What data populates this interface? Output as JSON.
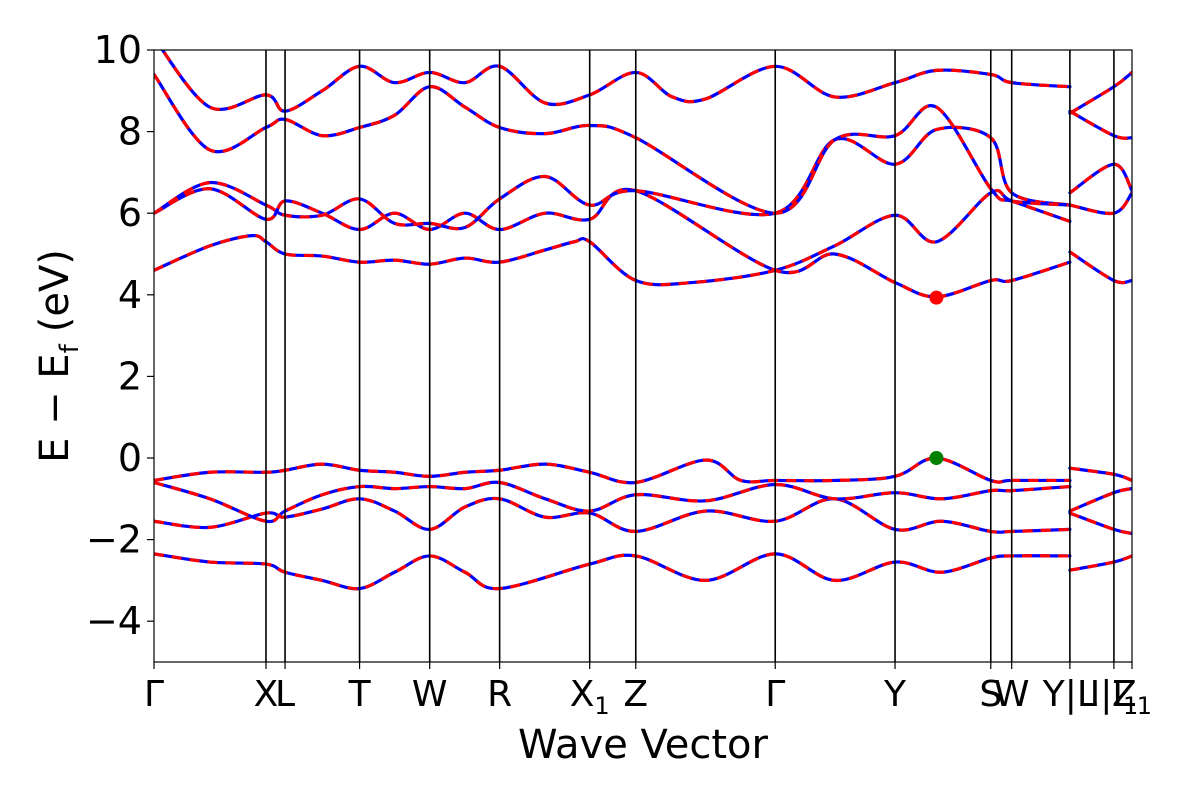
{
  "chart_data": {
    "type": "line",
    "title": "",
    "xlabel": "Wave Vector",
    "ylabel": "E − E",
    "ylabel_sub": "f",
    "ylabel_unit": "(eV)",
    "ylim": [
      -5,
      10
    ],
    "xlim": [
      0,
      1
    ],
    "grid": false,
    "yticks": [
      -4,
      -2,
      0,
      2,
      4,
      6,
      8,
      10
    ],
    "ytick_labels": [
      "−4",
      "−2",
      "0",
      "2",
      "4",
      "6",
      "8",
      "10"
    ],
    "kpoints": [
      {
        "x": 0.0,
        "main": "Γ",
        "sub": ""
      },
      {
        "x": 0.1145,
        "main": "X",
        "sub": ""
      },
      {
        "x": 0.134,
        "main": "L",
        "sub": ""
      },
      {
        "x": 0.2102,
        "main": "T",
        "sub": ""
      },
      {
        "x": 0.2819,
        "main": "W",
        "sub": ""
      },
      {
        "x": 0.3534,
        "main": "R",
        "sub": ""
      },
      {
        "x": 0.4455,
        "main": "X",
        "sub": "1"
      },
      {
        "x": 0.4926,
        "main": "Z",
        "sub": ""
      },
      {
        "x": 0.6352,
        "main": "Γ",
        "sub": ""
      },
      {
        "x": 0.7577,
        "main": "Y",
        "sub": ""
      },
      {
        "x": 0.8556,
        "main": "S",
        "sub": ""
      },
      {
        "x": 0.877,
        "main": "W",
        "sub": ""
      },
      {
        "x": 0.9365,
        "main": "Y|L",
        "sub": ""
      },
      {
        "x": 0.9815,
        "main": "I|I",
        "sub": "1"
      },
      {
        "x": 1.0,
        "main": "Z",
        "sub": "1"
      }
    ],
    "series_styles": {
      "reference": {
        "color": "#0000ff",
        "width": 3.2
      },
      "overlay": {
        "color": "#ff0000",
        "width": 3.2,
        "dash": "10 8"
      }
    },
    "bands": [
      {
        "x": [
          0.0,
          0.057,
          0.1145,
          0.134,
          0.172,
          0.2102,
          0.246,
          0.2819,
          0.318,
          0.3534,
          0.4455,
          0.4926,
          0.564,
          0.6352,
          0.696,
          0.7577,
          0.805,
          0.8556,
          0.877,
          0.9365
        ],
        "y": [
          -2.35,
          -2.55,
          -2.6,
          -2.8,
          -3.0,
          -3.2,
          -2.8,
          -2.4,
          -2.8,
          -3.2,
          -2.6,
          -2.4,
          -3.0,
          -2.35,
          -3.0,
          -2.55,
          -2.8,
          -2.45,
          -2.4,
          -2.4
        ]
      },
      {
        "x": [
          0.0,
          0.057,
          0.1145,
          0.134,
          0.172,
          0.2102,
          0.246,
          0.2819,
          0.318,
          0.3534,
          0.4,
          0.4455,
          0.4926,
          0.564,
          0.6352,
          0.696,
          0.7577,
          0.805,
          0.8556,
          0.877,
          0.9365
        ],
        "y": [
          -1.55,
          -1.7,
          -1.35,
          -1.45,
          -1.25,
          -1.0,
          -1.3,
          -1.75,
          -1.2,
          -1.0,
          -1.45,
          -1.35,
          -1.8,
          -1.3,
          -1.55,
          -1.0,
          -1.75,
          -1.55,
          -1.8,
          -1.8,
          -1.75
        ]
      },
      {
        "x": [
          0.0,
          0.057,
          0.1145,
          0.134,
          0.172,
          0.2102,
          0.246,
          0.2819,
          0.318,
          0.3534,
          0.4,
          0.4455,
          0.4926,
          0.564,
          0.6352,
          0.696,
          0.7577,
          0.805,
          0.8556,
          0.877,
          0.9365
        ],
        "y": [
          -0.6,
          -1.0,
          -1.55,
          -1.3,
          -0.9,
          -0.7,
          -0.75,
          -0.7,
          -0.75,
          -0.6,
          -1.0,
          -1.3,
          -0.9,
          -1.05,
          -0.65,
          -1.0,
          -0.85,
          -1.0,
          -0.8,
          -0.8,
          -0.7
        ]
      },
      {
        "x": [
          0.0,
          0.057,
          0.1145,
          0.134,
          0.172,
          0.2102,
          0.246,
          0.2819,
          0.318,
          0.3534,
          0.4,
          0.4455,
          0.4926,
          0.564,
          0.6,
          0.6352,
          0.696,
          0.7577,
          0.8,
          0.8556,
          0.877,
          0.9365
        ],
        "y": [
          -0.55,
          -0.35,
          -0.35,
          -0.3,
          -0.15,
          -0.3,
          -0.35,
          -0.45,
          -0.35,
          -0.3,
          -0.15,
          -0.35,
          -0.6,
          -0.05,
          -0.55,
          -0.55,
          -0.55,
          -0.45,
          0.0,
          -0.55,
          -0.55,
          -0.55
        ]
      },
      {
        "x": [
          0.0,
          0.057,
          0.1,
          0.1145,
          0.134,
          0.172,
          0.2102,
          0.246,
          0.2819,
          0.318,
          0.3534,
          0.4,
          0.43,
          0.4455,
          0.4926,
          0.55,
          0.6352,
          0.696,
          0.7577,
          0.8,
          0.8556,
          0.877,
          0.9365
        ],
        "y": [
          4.6,
          5.2,
          5.45,
          5.3,
          5.0,
          4.95,
          4.8,
          4.85,
          4.75,
          4.9,
          4.8,
          5.1,
          5.3,
          5.3,
          4.35,
          4.3,
          4.6,
          5.2,
          5.95,
          5.3,
          6.5,
          6.3,
          5.8
        ]
      },
      {
        "x": [
          0.0,
          0.057,
          0.1145,
          0.134,
          0.172,
          0.2102,
          0.246,
          0.2819,
          0.318,
          0.3534,
          0.4,
          0.4455,
          0.4926,
          0.6352,
          0.696,
          0.7577,
          0.8,
          0.8556,
          0.877,
          0.9365
        ],
        "y": [
          6.0,
          6.6,
          5.85,
          6.3,
          6.0,
          5.6,
          6.0,
          5.6,
          6.0,
          5.6,
          6.0,
          5.85,
          6.55,
          4.6,
          5.0,
          4.3,
          3.95,
          4.35,
          4.35,
          4.8
        ]
      },
      {
        "x": [
          0.0,
          0.057,
          0.1145,
          0.134,
          0.172,
          0.2102,
          0.246,
          0.2819,
          0.318,
          0.3534,
          0.4,
          0.4455,
          0.4926,
          0.6352,
          0.696,
          0.7577,
          0.8,
          0.8556,
          0.877,
          0.9365
        ],
        "y": [
          6.0,
          6.75,
          6.2,
          5.95,
          5.95,
          6.35,
          5.75,
          5.75,
          5.65,
          6.35,
          6.9,
          6.2,
          6.55,
          6.0,
          7.8,
          7.2,
          8.05,
          7.85,
          6.5,
          6.2
        ]
      },
      {
        "x": [
          0.0,
          0.057,
          0.1145,
          0.134,
          0.172,
          0.2102,
          0.246,
          0.2819,
          0.318,
          0.3534,
          0.4,
          0.4455,
          0.4926,
          0.6352,
          0.696,
          0.7577,
          0.8,
          0.8556,
          0.877,
          0.9365
        ],
        "y": [
          9.4,
          7.55,
          8.1,
          8.3,
          7.9,
          8.1,
          8.4,
          9.1,
          8.6,
          8.1,
          7.95,
          8.15,
          7.85,
          6.0,
          7.8,
          7.9,
          8.6,
          6.6,
          6.3,
          6.2
        ]
      },
      {
        "x": [
          0.0,
          0.057,
          0.1145,
          0.134,
          0.172,
          0.2102,
          0.246,
          0.2819,
          0.318,
          0.3534,
          0.4,
          0.4455,
          0.4926,
          0.53,
          0.564,
          0.6352,
          0.696,
          0.7577,
          0.8,
          0.8556,
          0.877,
          0.9365
        ],
        "y": [
          10.3,
          8.6,
          8.9,
          8.5,
          9.0,
          9.6,
          9.2,
          9.45,
          9.2,
          9.6,
          8.7,
          8.9,
          9.45,
          8.85,
          8.8,
          9.6,
          8.85,
          9.2,
          9.5,
          9.4,
          9.2,
          9.1
        ]
      },
      {
        "x": [
          0.9365,
          0.9815,
          1.0
        ],
        "y": [
          -2.75,
          -2.55,
          -2.4
        ]
      },
      {
        "x": [
          0.9365,
          0.9815,
          1.0
        ],
        "y": [
          -1.35,
          -1.75,
          -1.85
        ]
      },
      {
        "x": [
          0.9365,
          0.9815,
          1.0
        ],
        "y": [
          -1.3,
          -0.85,
          -0.75
        ]
      },
      {
        "x": [
          0.9365,
          0.9815,
          1.0
        ],
        "y": [
          -0.25,
          -0.4,
          -0.55
        ]
      },
      {
        "x": [
          0.9365,
          0.9815,
          1.0
        ],
        "y": [
          5.05,
          4.35,
          4.35
        ]
      },
      {
        "x": [
          0.9365,
          0.9815,
          1.0
        ],
        "y": [
          6.5,
          7.2,
          6.55
        ]
      },
      {
        "x": [
          0.9365,
          0.9815,
          1.0
        ],
        "y": [
          6.2,
          6.0,
          6.5
        ]
      },
      {
        "x": [
          0.9365,
          0.9815,
          1.0
        ],
        "y": [
          8.5,
          7.9,
          7.85
        ]
      },
      {
        "x": [
          0.9365,
          0.9815,
          1.0
        ],
        "y": [
          8.45,
          9.1,
          9.45
        ]
      }
    ],
    "markers": [
      {
        "x": 0.8,
        "y": 3.93,
        "color": "#ff0000"
      },
      {
        "x": 0.8,
        "y": 0.0,
        "color": "#008000"
      }
    ]
  }
}
